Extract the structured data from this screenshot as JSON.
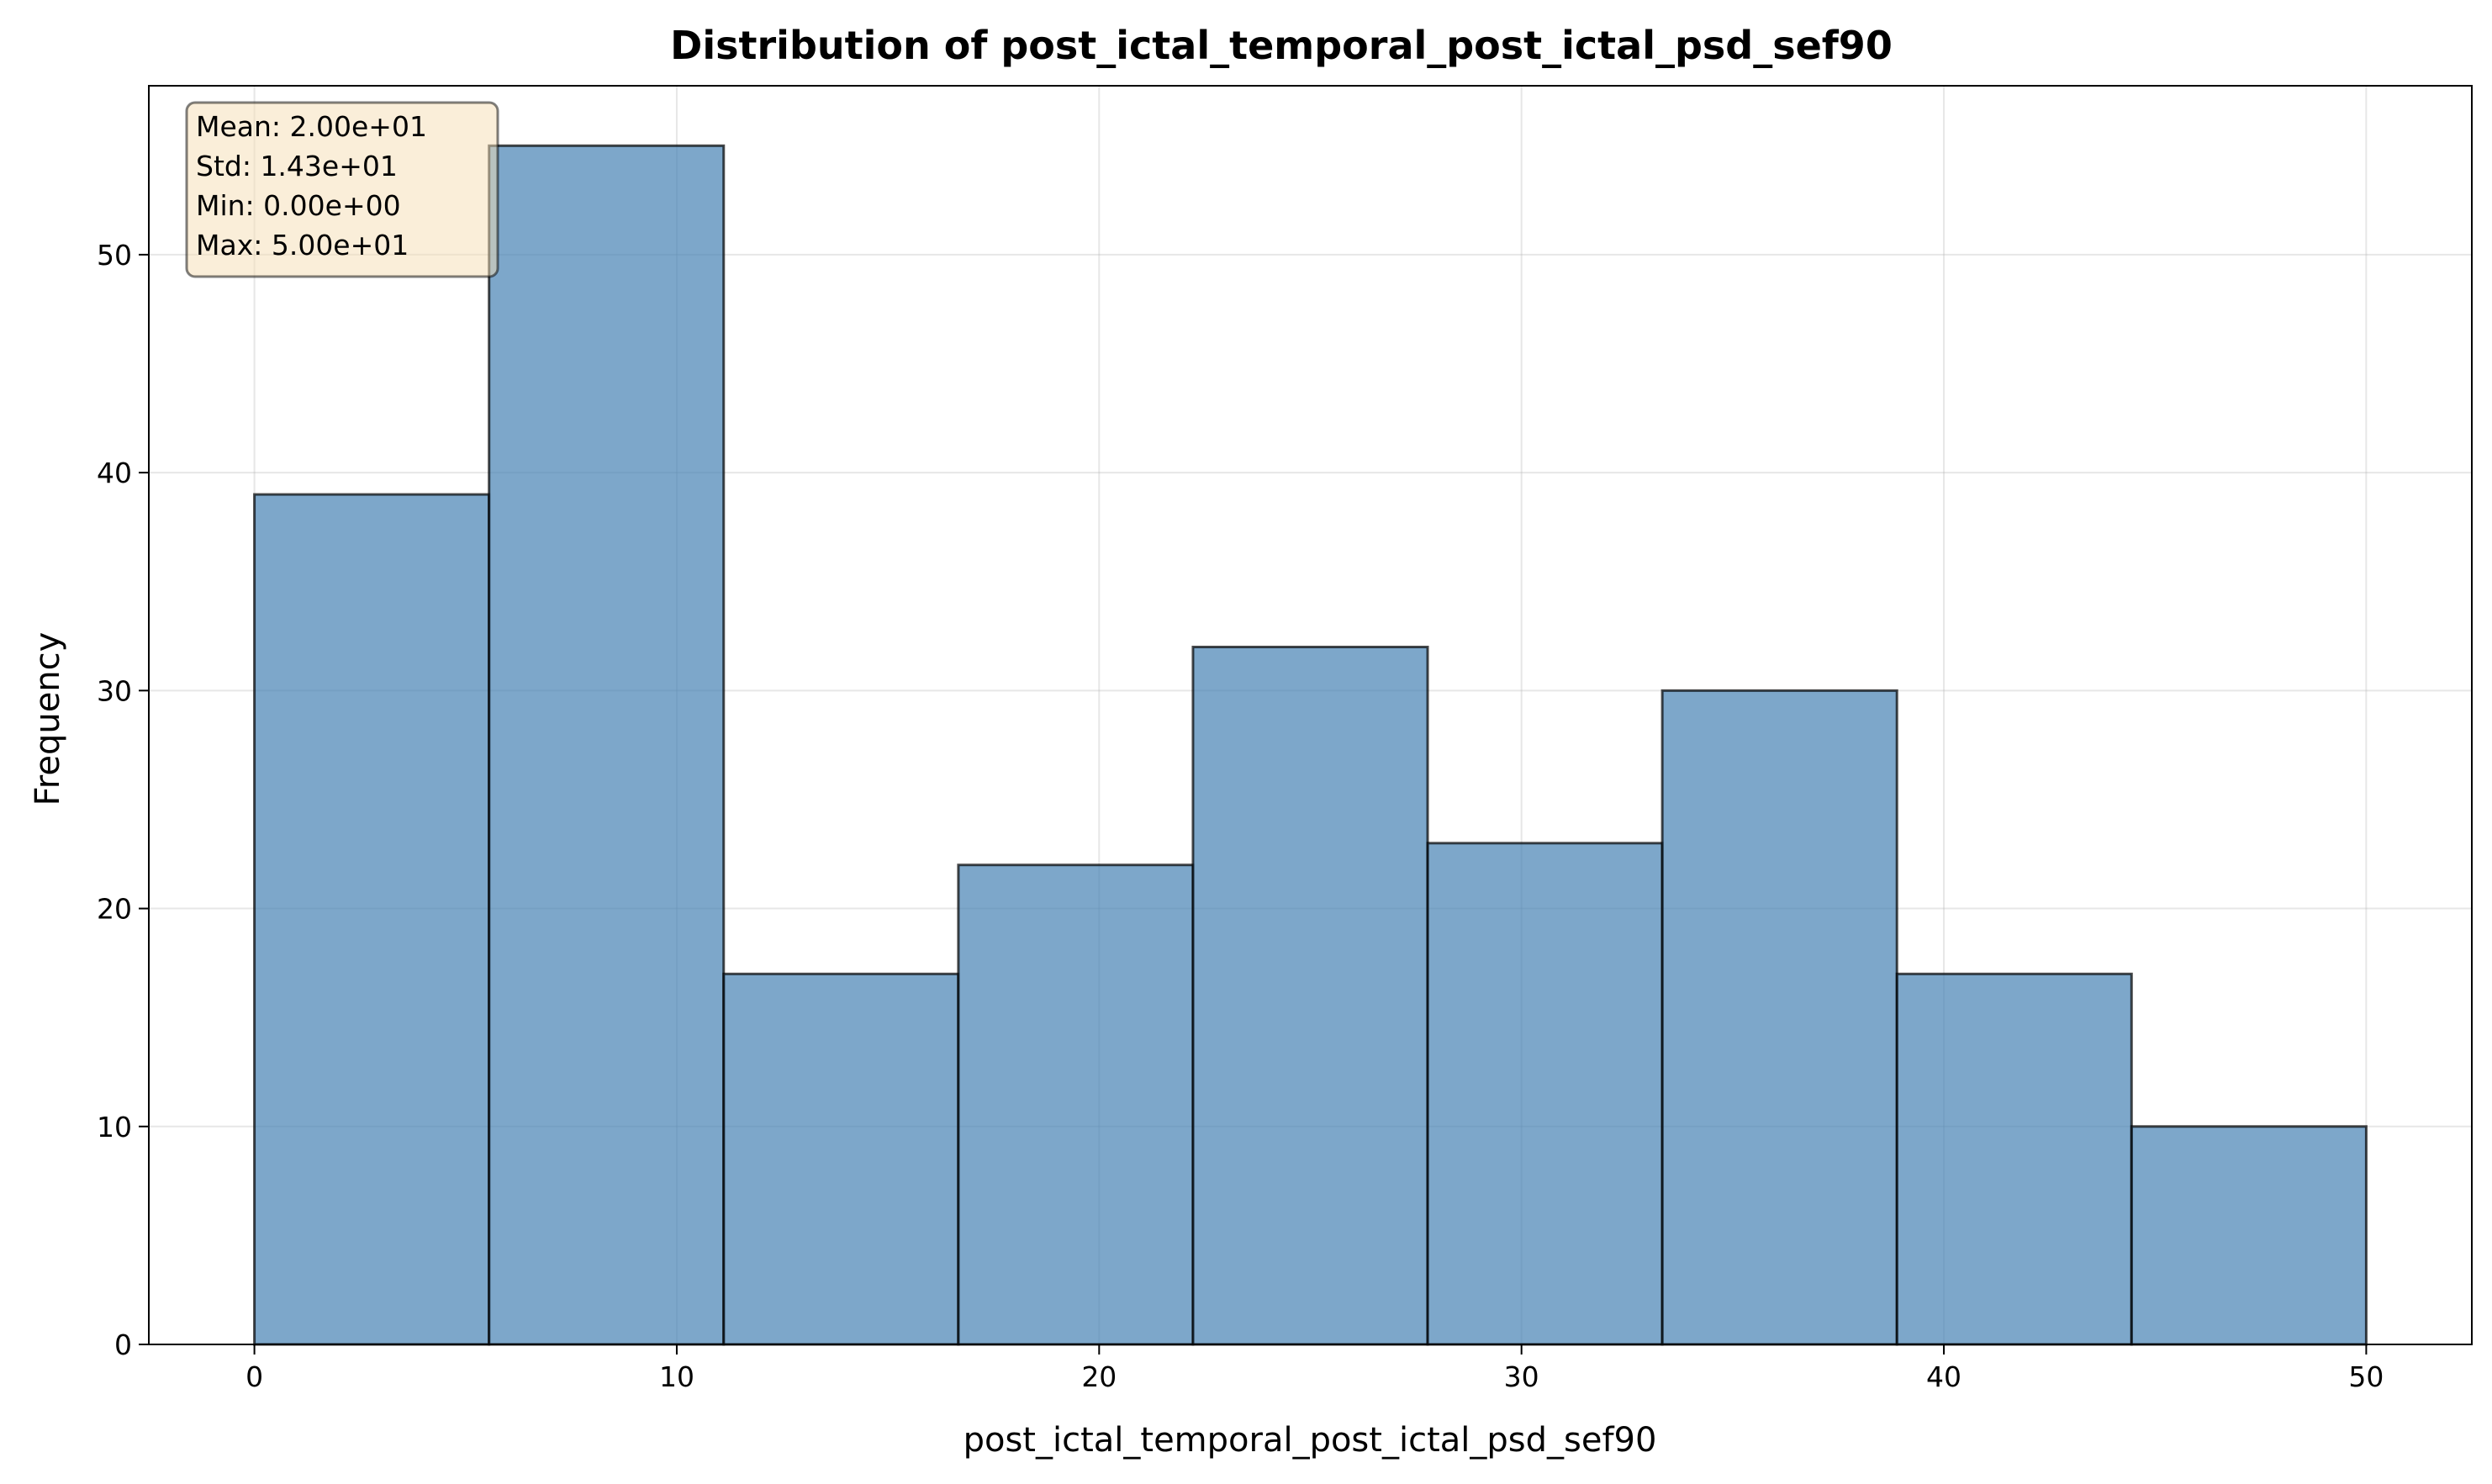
{
  "chart_data": {
    "type": "histogram",
    "title": "Distribution of post_ictal_temporal_post_ictal_psd_sef90",
    "xlabel": "post_ictal_temporal_post_ictal_psd_sef90",
    "ylabel": "Frequency",
    "xlim": [
      -2.5,
      52.5
    ],
    "ylim": [
      0,
      57.75
    ],
    "xticks": [
      0,
      10,
      20,
      30,
      40,
      50
    ],
    "yticks": [
      0,
      10,
      20,
      30,
      40,
      50
    ],
    "grid": true,
    "bins": [
      {
        "start": 0.0,
        "end": 5.556,
        "count": 39
      },
      {
        "start": 5.556,
        "end": 11.111,
        "count": 55
      },
      {
        "start": 11.111,
        "end": 16.667,
        "count": 17
      },
      {
        "start": 16.667,
        "end": 22.222,
        "count": 22
      },
      {
        "start": 22.222,
        "end": 27.778,
        "count": 32
      },
      {
        "start": 27.778,
        "end": 33.333,
        "count": 23
      },
      {
        "start": 33.333,
        "end": 38.889,
        "count": 30
      },
      {
        "start": 38.889,
        "end": 44.444,
        "count": 17
      },
      {
        "start": 44.444,
        "end": 50.0,
        "count": 10
      }
    ],
    "bar_color": "#4682b4",
    "bar_edge_color": "#000000",
    "stats_box": {
      "lines": [
        "Mean: 2.00e+01",
        "Std: 1.43e+01",
        "Min: 0.00e+00",
        "Max: 5.00e+01"
      ],
      "background": "#f5deb3",
      "placement": "top-left"
    }
  }
}
